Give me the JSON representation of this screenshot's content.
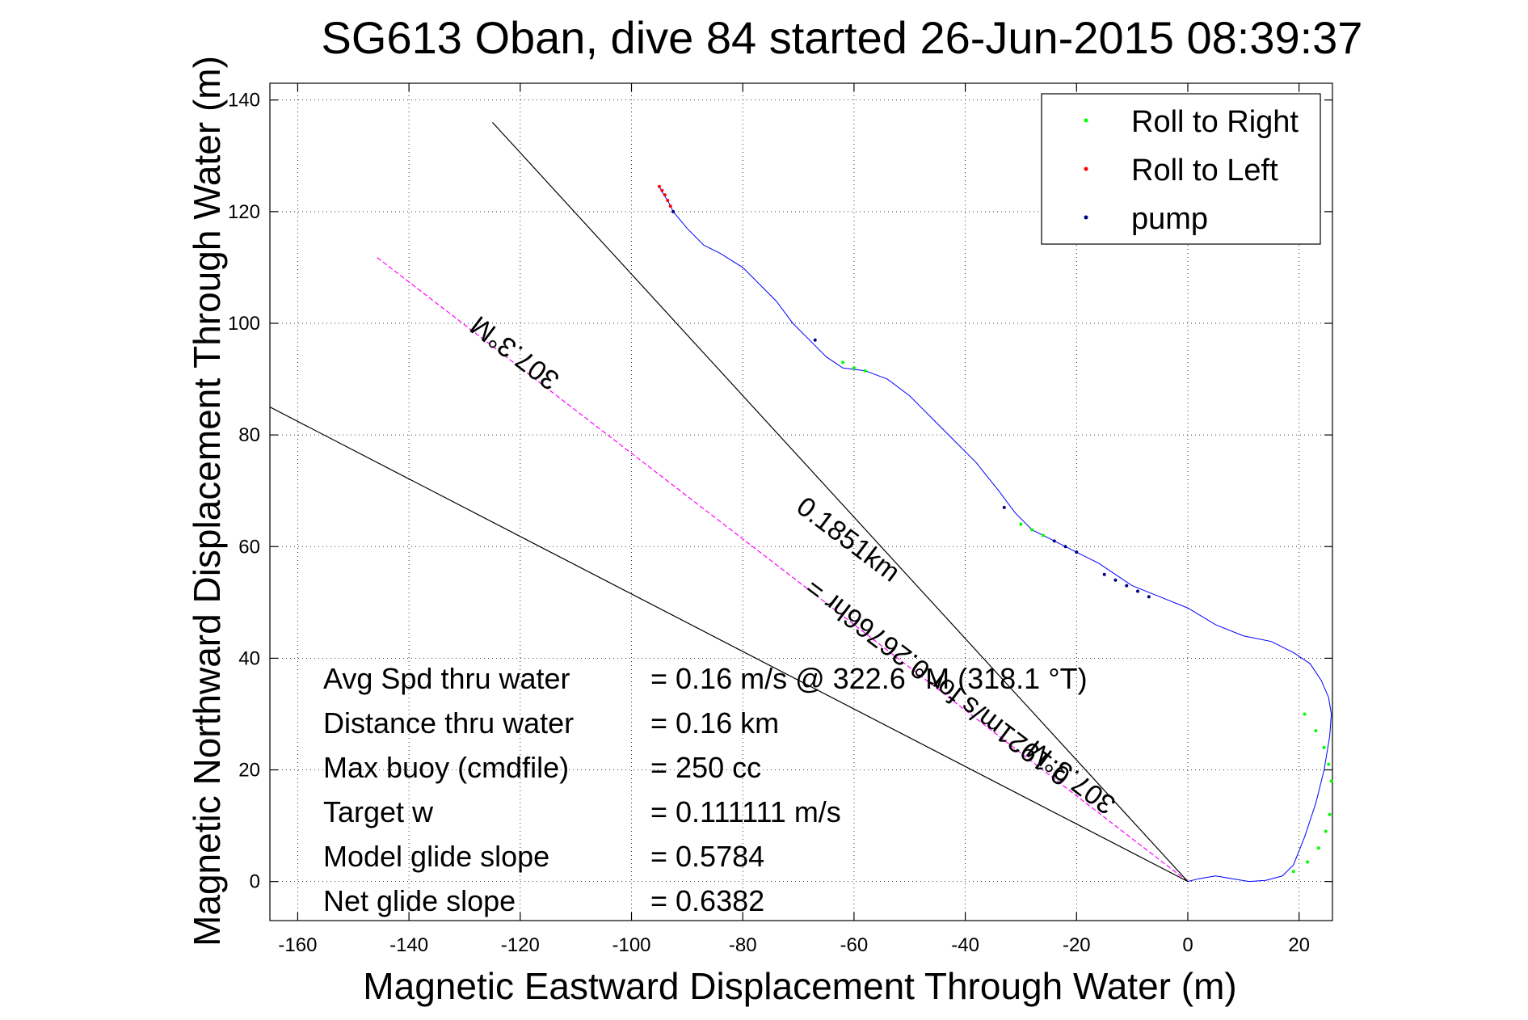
{
  "chart_data": {
    "type": "line",
    "title": "SG613 Oban, dive 84 started 26-Jun-2015 08:39:37",
    "xlabel": "Magnetic Eastward Displacement Through Water (m)",
    "ylabel": "Magnetic Northward Displacement Through Water (m)",
    "xlim": [
      -165,
      26
    ],
    "ylim": [
      -7,
      143
    ],
    "xticks": [
      "-160",
      "-140",
      "-120",
      "-100",
      "-80",
      "-60",
      "-40",
      "-20",
      "0",
      "20"
    ],
    "xtick_values": [
      -160,
      -140,
      -120,
      -100,
      -80,
      -60,
      -40,
      -20,
      0,
      20
    ],
    "yticks": [
      "0",
      "20",
      "40",
      "60",
      "80",
      "100",
      "120",
      "140"
    ],
    "ytick_values": [
      0,
      20,
      40,
      60,
      80,
      100,
      120,
      140
    ],
    "grid": true,
    "legend_position": "top-right",
    "legend": [
      {
        "label": "Roll to Right",
        "color": "#00ff00"
      },
      {
        "label": "Roll to Left",
        "color": "#ff0000"
      },
      {
        "label": "pump",
        "color": "#000080"
      }
    ],
    "track": {
      "color": "#0000ff",
      "x": [
        0,
        2,
        5,
        8,
        11,
        14,
        17,
        19,
        21,
        23,
        24.5,
        25.5,
        25.8,
        25.3,
        24,
        22,
        19,
        15,
        10,
        5,
        0,
        -5,
        -10,
        -13,
        -16,
        -20,
        -24,
        -28,
        -31,
        -34,
        -38,
        -42,
        -46,
        -50,
        -54,
        -58,
        -62,
        -65,
        -68,
        -71,
        -74,
        -77,
        -80,
        -84,
        -87,
        -90,
        -92.5,
        -93.5,
        -94.5,
        -95
      ],
      "y": [
        0,
        0.5,
        1,
        0.5,
        0,
        0.2,
        1,
        3,
        8,
        14,
        20,
        26,
        30,
        33,
        36,
        39,
        41,
        43,
        44,
        46,
        49,
        51,
        53,
        55,
        57,
        59,
        61,
        63,
        66,
        70,
        75,
        79,
        83,
        87,
        90,
        91.5,
        92,
        94,
        97,
        100,
        104,
        107,
        110,
        112.5,
        114,
        117,
        120,
        122,
        123.5,
        124.5
      ]
    },
    "roll_right_points": [
      {
        "x": 21,
        "y": 30
      },
      {
        "x": 23,
        "y": 27
      },
      {
        "x": 24.5,
        "y": 24
      },
      {
        "x": 25.3,
        "y": 21
      },
      {
        "x": 25.8,
        "y": 18
      },
      {
        "x": 25.5,
        "y": 12
      },
      {
        "x": 24.8,
        "y": 9
      },
      {
        "x": 23.5,
        "y": 6
      },
      {
        "x": 21.5,
        "y": 3.5
      },
      {
        "x": 19,
        "y": 1.8
      },
      {
        "x": -62,
        "y": 93
      },
      {
        "x": -60,
        "y": 92
      },
      {
        "x": -58,
        "y": 91.5
      },
      {
        "x": -30,
        "y": 64
      },
      {
        "x": -28,
        "y": 63
      },
      {
        "x": -26,
        "y": 62
      }
    ],
    "roll_left_points": [
      {
        "x": -95,
        "y": 124.5
      },
      {
        "x": -94.5,
        "y": 123.8
      },
      {
        "x": -94,
        "y": 123
      },
      {
        "x": -93.5,
        "y": 122
      },
      {
        "x": -93,
        "y": 121
      }
    ],
    "pump_points": [
      {
        "x": -92.5,
        "y": 120
      },
      {
        "x": -67,
        "y": 97
      },
      {
        "x": -33,
        "y": 67
      },
      {
        "x": -24,
        "y": 61
      },
      {
        "x": -22,
        "y": 60
      },
      {
        "x": -20,
        "y": 59
      },
      {
        "x": -15,
        "y": 55
      },
      {
        "x": -13,
        "y": 54
      },
      {
        "x": -11,
        "y": 53
      },
      {
        "x": -9,
        "y": 52
      },
      {
        "x": -7,
        "y": 51
      }
    ],
    "reference_lines": [
      {
        "name": "dashed-magenta",
        "color": "#ff00ff",
        "x": [
          0,
          -146
        ],
        "y": [
          0,
          112
        ]
      },
      {
        "name": "black-upper",
        "color": "#000000",
        "x": [
          0,
          -125
        ],
        "y": [
          0,
          136
        ]
      },
      {
        "name": "black-lower",
        "color": "#000000",
        "x": [
          0,
          -165
        ],
        "y": [
          0,
          85
        ]
      }
    ],
    "line_annotations": [
      {
        "text": "307.3°M",
        "x": -120,
        "y": 96,
        "rotation": 217
      },
      {
        "text": "0.1851km",
        "x": -62,
        "y": 60,
        "rotation": 37
      },
      {
        "text": "0.1921m/s for 0.26766hr =",
        "x": -44,
        "y": 37,
        "rotation": 217
      },
      {
        "text": "307.3°M",
        "x": -20,
        "y": 20,
        "rotation": 217
      }
    ],
    "stats": [
      {
        "label": "Avg Spd thru water",
        "value": "=  0.16 m/s @ 322.6 °M (318.1 °T)"
      },
      {
        "label": "Distance thru water",
        "value": "=  0.16 km"
      },
      {
        "label": "Max buoy (cmdfile)",
        "value": "= 250 cc"
      },
      {
        "label": "Target w",
        "value": "= 0.111111 m/s"
      },
      {
        "label": "Model glide slope",
        "value": "= 0.5784"
      },
      {
        "label": "Net glide slope",
        "value": "= 0.6382"
      }
    ]
  }
}
